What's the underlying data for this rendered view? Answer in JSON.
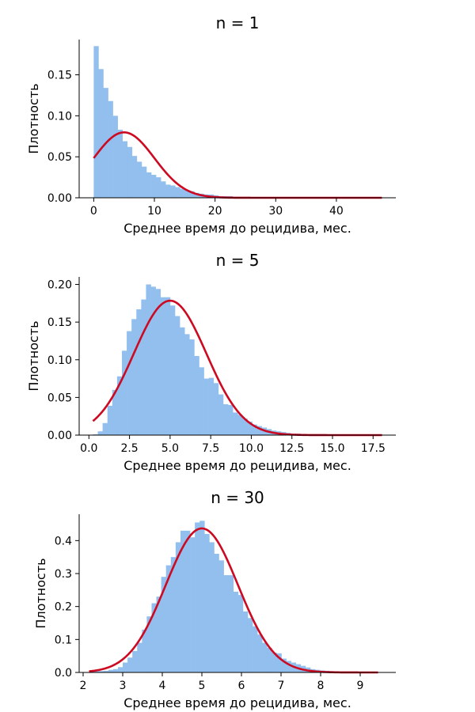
{
  "chart_data": [
    {
      "type": "bar",
      "title": "n = 1",
      "xlabel": "Среднее время до рецидива, мес.",
      "ylabel": "Плотность",
      "xlim": [
        -2.4,
        49.8
      ],
      "ylim": [
        0,
        0.193
      ],
      "xticks": [
        "0",
        "10",
        "20",
        "30",
        "40"
      ],
      "yticks": [
        "0.00",
        "0.05",
        "0.10",
        "0.15"
      ],
      "xtick_values": [
        0,
        10,
        20,
        30,
        40
      ],
      "ytick_values": [
        0,
        0.05,
        0.1,
        0.15
      ],
      "bin_start": 0.0,
      "bin_width": 0.79,
      "values": [
        0.185,
        0.157,
        0.134,
        0.118,
        0.1,
        0.083,
        0.069,
        0.062,
        0.051,
        0.044,
        0.038,
        0.031,
        0.028,
        0.025,
        0.02,
        0.016,
        0.015,
        0.013,
        0.011,
        0.009,
        0.008,
        0.006,
        0.005,
        0.004,
        0.004,
        0.003,
        0.002,
        0.002,
        0.002,
        0.001,
        0.001,
        0.001,
        0.001,
        0.001,
        0.0008,
        0.0007,
        0.0006,
        0.0005,
        0.0004,
        0.0004,
        0.0003,
        0.0003,
        0.0002,
        0.0002,
        0.0002,
        0.0001,
        0.0001,
        0.0001,
        0.0001,
        0.0001,
        0.0001,
        0.0001,
        0.0001,
        0.0001,
        0.0001,
        0.0001,
        0.0001,
        0.0001,
        0.0001,
        0.0001
      ],
      "normal_fit": {
        "mean": 5.0,
        "sd": 5.0,
        "x_from": 0.0,
        "x_to": 47.5
      },
      "grid": false
    },
    {
      "type": "bar",
      "title": "n = 5",
      "xlabel": "Среднее время до рецидива, мес.",
      "ylabel": "Плотность",
      "xlim": [
        -0.6,
        18.9
      ],
      "ylim": [
        0,
        0.21
      ],
      "xticks": [
        "0.0",
        "2.5",
        "5.0",
        "7.5",
        "10.0",
        "12.5",
        "15.0",
        "17.5"
      ],
      "yticks": [
        "0.00",
        "0.05",
        "0.10",
        "0.15",
        "0.20"
      ],
      "xtick_values": [
        0,
        2.5,
        5,
        7.5,
        10,
        12.5,
        15,
        17.5
      ],
      "ytick_values": [
        0,
        0.05,
        0.1,
        0.15,
        0.2
      ],
      "bin_start": 0.25,
      "bin_width": 0.297,
      "values": [
        0.001,
        0.005,
        0.016,
        0.039,
        0.06,
        0.078,
        0.112,
        0.138,
        0.154,
        0.167,
        0.18,
        0.2,
        0.197,
        0.194,
        0.183,
        0.183,
        0.172,
        0.158,
        0.143,
        0.134,
        0.127,
        0.105,
        0.09,
        0.075,
        0.076,
        0.069,
        0.054,
        0.041,
        0.04,
        0.03,
        0.027,
        0.022,
        0.018,
        0.014,
        0.012,
        0.01,
        0.008,
        0.006,
        0.005,
        0.004,
        0.003,
        0.002,
        0.002,
        0.001,
        0.001,
        0.001,
        0.001,
        0.001,
        0.001,
        0.001,
        0.0005,
        0.0005,
        0.0005,
        0.0005,
        0.0004,
        0.0004,
        0.0003,
        0.0003,
        0.0002,
        0.0002
      ],
      "normal_fit": {
        "mean": 5.0,
        "sd": 2.236,
        "x_from": 0.25,
        "x_to": 18.05
      },
      "grid": false
    },
    {
      "type": "bar",
      "title": "n = 30",
      "xlabel": "Среднее время до рецидива, мес.",
      "ylabel": "Плотность",
      "xlim": [
        1.9,
        9.9
      ],
      "ylim": [
        0,
        0.48
      ],
      "xticks": [
        "2",
        "3",
        "4",
        "5",
        "6",
        "7",
        "8",
        "9"
      ],
      "yticks": [
        "0.0",
        "0.1",
        "0.2",
        "0.3",
        "0.4"
      ],
      "xtick_values": [
        2,
        3,
        4,
        5,
        6,
        7,
        8,
        9
      ],
      "ytick_values": [
        0,
        0.1,
        0.2,
        0.3,
        0.4
      ],
      "bin_start": 2.15,
      "bin_width": 0.1215,
      "values": [
        0.002,
        0.003,
        0.004,
        0.005,
        0.008,
        0.01,
        0.016,
        0.03,
        0.045,
        0.065,
        0.09,
        0.13,
        0.17,
        0.21,
        0.23,
        0.29,
        0.325,
        0.35,
        0.395,
        0.43,
        0.43,
        0.41,
        0.455,
        0.46,
        0.42,
        0.395,
        0.36,
        0.34,
        0.295,
        0.295,
        0.245,
        0.235,
        0.185,
        0.165,
        0.14,
        0.115,
        0.09,
        0.075,
        0.06,
        0.058,
        0.042,
        0.035,
        0.03,
        0.025,
        0.02,
        0.015,
        0.01,
        0.008,
        0.006,
        0.005,
        0.004,
        0.003,
        0.002,
        0.002,
        0.001,
        0.001,
        0.001,
        0.001,
        0.001,
        0.001
      ],
      "normal_fit": {
        "mean": 5.0,
        "sd": 0.913,
        "x_from": 2.15,
        "x_to": 9.45
      },
      "grid": false
    }
  ]
}
